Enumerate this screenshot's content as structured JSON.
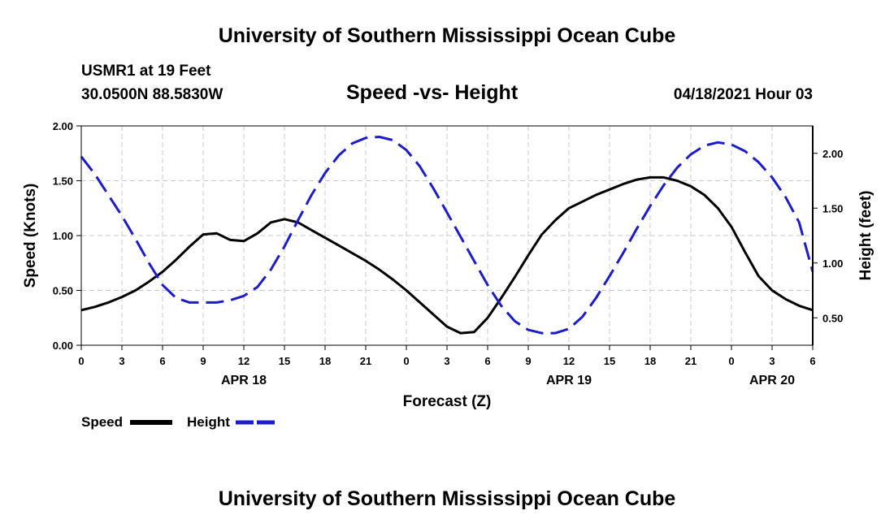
{
  "header": {
    "title": "University of Southern Mississippi Ocean Cube",
    "station_name": "USMR1 at 19 Feet",
    "station_coords": "30.0500N  88.5830W",
    "chart_title": "Speed -vs- Height",
    "date_label": "04/18/2021 Hour 03"
  },
  "footer": {
    "title": "University of Southern Mississippi Ocean Cube"
  },
  "legend": {
    "speed_label": "Speed",
    "height_label": "Height"
  },
  "colors": {
    "speed": "#000000",
    "height": "#1c1cc8",
    "grid": "#c8c8c8"
  },
  "chart_data": {
    "type": "line",
    "title": "Speed -vs- Height",
    "xlabel": "Forecast (Z)",
    "ylabel": "Speed (Knots)",
    "y2label": "Height (feet)",
    "xlim": [
      0,
      54
    ],
    "ylim": [
      0,
      2
    ],
    "y2lim": [
      0.25,
      2.25
    ],
    "grid": true,
    "x_ticks": [
      0,
      3,
      6,
      9,
      12,
      15,
      18,
      21,
      24,
      27,
      30,
      33,
      36,
      39,
      42,
      45,
      48,
      51,
      54
    ],
    "x_tick_labels": [
      "0",
      "3",
      "6",
      "9",
      "12",
      "15",
      "18",
      "21",
      "0",
      "3",
      "6",
      "9",
      "12",
      "15",
      "18",
      "21",
      "0",
      "3",
      "6"
    ],
    "y_ticks": [
      0,
      0.5,
      1,
      1.5,
      2
    ],
    "y_tick_labels": [
      "0.00",
      "0.50",
      "1.00",
      "1.50",
      "2.00"
    ],
    "y2_ticks": [
      0.5,
      1,
      1.5,
      2
    ],
    "y2_tick_labels": [
      "0.50",
      "1.00",
      "1.50",
      "2.00"
    ],
    "date_labels": [
      {
        "x": 12,
        "label": "APR 18"
      },
      {
        "x": 36,
        "label": "APR 19"
      },
      {
        "x": 51,
        "label": "APR 20"
      }
    ],
    "series": [
      {
        "name": "Speed",
        "axis": "left",
        "style": "solid",
        "x": [
          0,
          1,
          2,
          3,
          4,
          5,
          6,
          7,
          8,
          9,
          10,
          11,
          12,
          13,
          14,
          15,
          16,
          17,
          18,
          19,
          20,
          21,
          22,
          23,
          24,
          25,
          26,
          27,
          28,
          29,
          30,
          31,
          32,
          33,
          34,
          35,
          36,
          37,
          38,
          39,
          40,
          41,
          42,
          43,
          44,
          45,
          46,
          47,
          48,
          49,
          50,
          51,
          52,
          53,
          54
        ],
        "values": [
          0.32,
          0.35,
          0.39,
          0.44,
          0.5,
          0.58,
          0.67,
          0.78,
          0.9,
          1.01,
          1.02,
          0.96,
          0.95,
          1.02,
          1.12,
          1.15,
          1.12,
          1.05,
          0.98,
          0.91,
          0.84,
          0.77,
          0.69,
          0.6,
          0.5,
          0.39,
          0.28,
          0.17,
          0.11,
          0.12,
          0.25,
          0.43,
          0.62,
          0.82,
          1.01,
          1.14,
          1.25,
          1.31,
          1.37,
          1.42,
          1.47,
          1.51,
          1.53,
          1.53,
          1.5,
          1.45,
          1.37,
          1.25,
          1.08,
          0.85,
          0.63,
          0.5,
          0.42,
          0.36,
          0.32
        ]
      },
      {
        "name": "Height",
        "axis": "right",
        "style": "dashed",
        "x": [
          0,
          1,
          2,
          3,
          4,
          5,
          6,
          7,
          8,
          9,
          10,
          11,
          12,
          13,
          14,
          15,
          16,
          17,
          18,
          19,
          20,
          21,
          22,
          23,
          24,
          25,
          26,
          27,
          28,
          29,
          30,
          31,
          32,
          33,
          34,
          35,
          36,
          37,
          38,
          39,
          40,
          41,
          42,
          43,
          44,
          45,
          46,
          47,
          48,
          49,
          50,
          51,
          52,
          53,
          54
        ],
        "values": [
          1.97,
          1.81,
          1.62,
          1.43,
          1.22,
          1.0,
          0.8,
          0.68,
          0.64,
          0.64,
          0.64,
          0.66,
          0.7,
          0.78,
          0.94,
          1.15,
          1.39,
          1.62,
          1.82,
          1.98,
          2.09,
          2.14,
          2.15,
          2.12,
          2.03,
          1.88,
          1.68,
          1.46,
          1.24,
          1.02,
          0.8,
          0.61,
          0.47,
          0.39,
          0.36,
          0.36,
          0.4,
          0.51,
          0.68,
          0.88,
          1.09,
          1.31,
          1.52,
          1.71,
          1.87,
          1.99,
          2.07,
          2.1,
          2.08,
          2.02,
          1.92,
          1.78,
          1.6,
          1.37,
          0.92
        ]
      }
    ]
  }
}
